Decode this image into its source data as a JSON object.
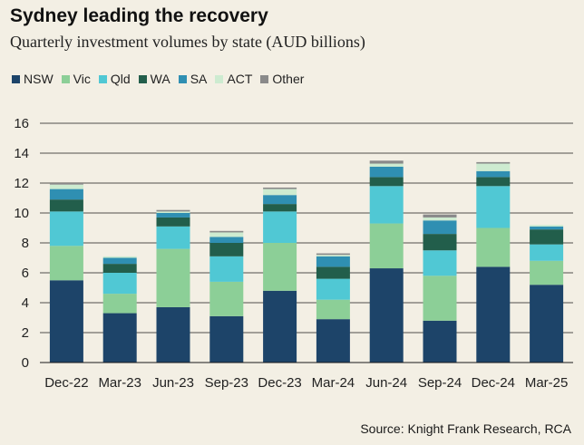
{
  "title": "Sydney leading the recovery",
  "subtitle": "Quarterly investment volumes by state (AUD billions)",
  "source": "Source: Knight Frank Research, RCA",
  "chart_data": {
    "type": "bar",
    "stacked": true,
    "categories": [
      "Dec-22",
      "Mar-23",
      "Jun-23",
      "Sep-23",
      "Dec-23",
      "Mar-24",
      "Jun-24",
      "Sep-24",
      "Dec-24",
      "Mar-25"
    ],
    "ylim": [
      0,
      16
    ],
    "yticks": [
      0,
      2,
      4,
      6,
      8,
      10,
      12,
      14,
      16
    ],
    "grid": true,
    "legend_position": "top-left",
    "series": [
      {
        "name": "NSW",
        "color": "#1d4469",
        "values": [
          5.5,
          3.3,
          3.7,
          3.1,
          4.8,
          2.9,
          6.3,
          2.8,
          6.4,
          5.2
        ]
      },
      {
        "name": "Vic",
        "color": "#8ccf97",
        "values": [
          2.3,
          1.3,
          3.9,
          2.3,
          3.2,
          1.3,
          3.0,
          3.0,
          2.6,
          1.6
        ]
      },
      {
        "name": "Qld",
        "color": "#50c8d4",
        "values": [
          2.3,
          1.4,
          1.5,
          1.7,
          2.1,
          1.4,
          2.5,
          1.7,
          2.8,
          1.1
        ]
      },
      {
        "name": "WA",
        "color": "#225e4b",
        "values": [
          0.8,
          0.6,
          0.6,
          0.9,
          0.5,
          0.8,
          0.6,
          1.1,
          0.6,
          1.0
        ]
      },
      {
        "name": "SA",
        "color": "#2f8fb2",
        "values": [
          0.7,
          0.4,
          0.3,
          0.4,
          0.6,
          0.7,
          0.7,
          0.9,
          0.4,
          0.2
        ]
      },
      {
        "name": "ACT",
        "color": "#cdebd0",
        "values": [
          0.3,
          0.1,
          0.1,
          0.3,
          0.4,
          0.1,
          0.2,
          0.2,
          0.5,
          0.1
        ]
      },
      {
        "name": "Other",
        "color": "#8a8a8a",
        "values": [
          0.1,
          0.0,
          0.1,
          0.1,
          0.1,
          0.1,
          0.2,
          0.2,
          0.1,
          0.0
        ]
      }
    ]
  }
}
